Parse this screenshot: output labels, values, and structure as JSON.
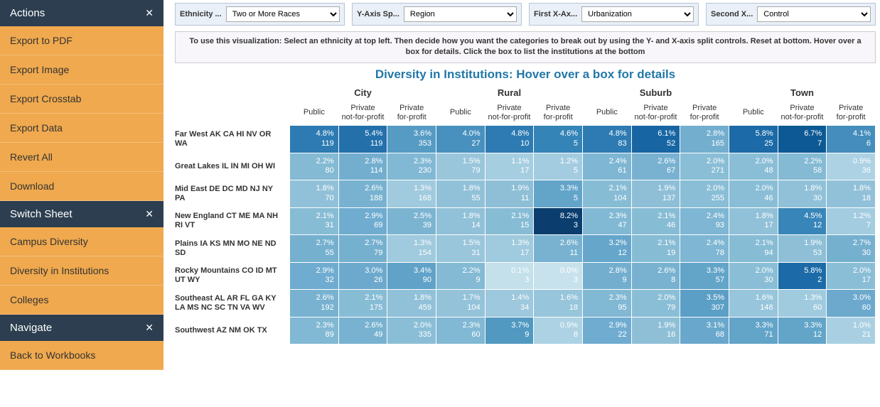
{
  "sidebar": {
    "sections": [
      {
        "title": "Actions",
        "items": [
          "Export to PDF",
          "Export Image",
          "Export Crosstab",
          "Export Data",
          "Revert All",
          "Download"
        ]
      },
      {
        "title": "Switch Sheet",
        "items": [
          "Campus Diversity",
          "Diversity in Institutions",
          "Colleges"
        ]
      },
      {
        "title": "Navigate",
        "items": [
          "Back to Workbooks"
        ]
      }
    ]
  },
  "controls": [
    {
      "label": "Ethnicity ...",
      "value": "Two or More Races"
    },
    {
      "label": "Y-Axis Sp...",
      "value": "Region"
    },
    {
      "label": "First X-Ax...",
      "value": "Urbanization"
    },
    {
      "label": "Second X...",
      "value": "Control"
    }
  ],
  "instruction": "To use this visualization: Select an ethnicity at top left.  Then decide how you want the categories to break out by using the Y- and X-axis split controls.  Reset at bottom.  Hover over a box for details.  Click the box to list the institutions at the bottom",
  "title": "Diversity in Institutions: Hover over a box for details",
  "groups": [
    "City",
    "Rural",
    "Suburb",
    "Town"
  ],
  "subheaders": [
    "Public",
    "Private\nnot-for-profit",
    "Private\nfor-profit"
  ],
  "rows": [
    {
      "label": "Far West AK CA HI NV OR WA",
      "cells": [
        {
          "p": "4.8%",
          "n": "119",
          "c": "#2d7bb2"
        },
        {
          "p": "5.4%",
          "n": "119",
          "c": "#2370ab"
        },
        {
          "p": "3.6%",
          "n": "353",
          "c": "#569bc4"
        },
        {
          "p": "4.0%",
          "n": "27",
          "c": "#4891be"
        },
        {
          "p": "4.8%",
          "n": "10",
          "c": "#2d7bb2"
        },
        {
          "p": "4.6%",
          "n": "5",
          "c": "#3484b8"
        },
        {
          "p": "4.8%",
          "n": "83",
          "c": "#2d7bb2"
        },
        {
          "p": "6.1%",
          "n": "52",
          "c": "#1765a3"
        },
        {
          "p": "2.8%",
          "n": "165",
          "c": "#73aecf"
        },
        {
          "p": "5.8%",
          "n": "25",
          "c": "#1c6aa7"
        },
        {
          "p": "6.7%",
          "n": "7",
          "c": "#0d5995"
        },
        {
          "p": "4.1%",
          "n": "6",
          "c": "#448dbc"
        }
      ]
    },
    {
      "label": "Great Lakes IL IN MI OH WI",
      "cells": [
        {
          "p": "2.2%",
          "n": "80",
          "c": "#84bad4"
        },
        {
          "p": "2.8%",
          "n": "114",
          "c": "#73aecf"
        },
        {
          "p": "2.3%",
          "n": "230",
          "c": "#81b8d4"
        },
        {
          "p": "1.5%",
          "n": "79",
          "c": "#9ac6dc"
        },
        {
          "p": "1.1%",
          "n": "17",
          "c": "#a6cee1"
        },
        {
          "p": "1.2%",
          "n": "5",
          "c": "#a3cce0"
        },
        {
          "p": "2.4%",
          "n": "61",
          "c": "#7eb6d3"
        },
        {
          "p": "2.6%",
          "n": "67",
          "c": "#78b2d0"
        },
        {
          "p": "2.0%",
          "n": "271",
          "c": "#8abed6"
        },
        {
          "p": "2.0%",
          "n": "48",
          "c": "#8abed6"
        },
        {
          "p": "2.2%",
          "n": "58",
          "c": "#84bad4"
        },
        {
          "p": "0.9%",
          "n": "36",
          "c": "#acd2e3"
        }
      ]
    },
    {
      "label": "Mid East DE DC MD NJ NY PA",
      "cells": [
        {
          "p": "1.8%",
          "n": "70",
          "c": "#91c1d8"
        },
        {
          "p": "2.6%",
          "n": "188",
          "c": "#78b2d0"
        },
        {
          "p": "1.3%",
          "n": "168",
          "c": "#a0cade"
        },
        {
          "p": "1.8%",
          "n": "55",
          "c": "#91c1d8"
        },
        {
          "p": "1.9%",
          "n": "11",
          "c": "#8ebfd7"
        },
        {
          "p": "3.3%",
          "n": "5",
          "c": "#63a4c9"
        },
        {
          "p": "2.1%",
          "n": "104",
          "c": "#87bcd5"
        },
        {
          "p": "1.9%",
          "n": "137",
          "c": "#8ebfd7"
        },
        {
          "p": "2.0%",
          "n": "255",
          "c": "#8abed6"
        },
        {
          "p": "2.0%",
          "n": "46",
          "c": "#8abed6"
        },
        {
          "p": "1.8%",
          "n": "30",
          "c": "#91c1d8"
        },
        {
          "p": "1.8%",
          "n": "18",
          "c": "#91c1d8"
        }
      ]
    },
    {
      "label": "New England CT ME MA NH RI VT",
      "cells": [
        {
          "p": "2.1%",
          "n": "31",
          "c": "#87bcd5"
        },
        {
          "p": "2.9%",
          "n": "69",
          "c": "#6facd0"
        },
        {
          "p": "2.5%",
          "n": "39",
          "c": "#7bb4d1"
        },
        {
          "p": "1.8%",
          "n": "14",
          "c": "#91c1d8"
        },
        {
          "p": "2.1%",
          "n": "15",
          "c": "#87bcd5"
        },
        {
          "p": "8.2%",
          "n": "3",
          "c": "#0b3e6f"
        },
        {
          "p": "2.3%",
          "n": "47",
          "c": "#81b8d4"
        },
        {
          "p": "2.1%",
          "n": "46",
          "c": "#87bcd5"
        },
        {
          "p": "2.4%",
          "n": "93",
          "c": "#7eb6d3"
        },
        {
          "p": "1.8%",
          "n": "17",
          "c": "#91c1d8"
        },
        {
          "p": "4.5%",
          "n": "12",
          "c": "#3886b9"
        },
        {
          "p": "1.2%",
          "n": "7",
          "c": "#a3cce0"
        }
      ]
    },
    {
      "label": "Plains IA KS MN MO NE ND SD",
      "cells": [
        {
          "p": "2.7%",
          "n": "55",
          "c": "#76b0cf"
        },
        {
          "p": "2.7%",
          "n": "79",
          "c": "#76b0cf"
        },
        {
          "p": "1.3%",
          "n": "154",
          "c": "#a0cade"
        },
        {
          "p": "1.5%",
          "n": "31",
          "c": "#9ac6dc"
        },
        {
          "p": "1.3%",
          "n": "17",
          "c": "#a0cade"
        },
        {
          "p": "2.6%",
          "n": "11",
          "c": "#78b2d0"
        },
        {
          "p": "3.2%",
          "n": "12",
          "c": "#66a6cb"
        },
        {
          "p": "2.1%",
          "n": "19",
          "c": "#87bcd5"
        },
        {
          "p": "2.4%",
          "n": "78",
          "c": "#7eb6d3"
        },
        {
          "p": "2.1%",
          "n": "94",
          "c": "#87bcd5"
        },
        {
          "p": "1.9%",
          "n": "53",
          "c": "#8ebfd7"
        },
        {
          "p": "2.7%",
          "n": "30",
          "c": "#76b0cf"
        }
      ]
    },
    {
      "label": "Rocky Mountains CO ID MT UT WY",
      "cells": [
        {
          "p": "2.9%",
          "n": "32",
          "c": "#6facd0"
        },
        {
          "p": "3.0%",
          "n": "26",
          "c": "#6ca9cd"
        },
        {
          "p": "3.4%",
          "n": "90",
          "c": "#60a2c8"
        },
        {
          "p": "2.2%",
          "n": "9",
          "c": "#84bad4"
        },
        {
          "p": "0.1%",
          "n": "3",
          "c": "#c4e0eb"
        },
        {
          "p": "0.0%",
          "n": "3",
          "c": "#c8e2ed"
        },
        {
          "p": "2.8%",
          "n": "9",
          "c": "#73aecf"
        },
        {
          "p": "2.6%",
          "n": "8",
          "c": "#78b2d0"
        },
        {
          "p": "3.3%",
          "n": "57",
          "c": "#63a4c9"
        },
        {
          "p": "2.0%",
          "n": "30",
          "c": "#8abed6"
        },
        {
          "p": "5.8%",
          "n": "2",
          "c": "#1c6aa7"
        },
        {
          "p": "2.0%",
          "n": "17",
          "c": "#8abed6"
        }
      ]
    },
    {
      "label": "Southeast AL AR FL GA KY LA MS NC SC TN VA WV",
      "cells": [
        {
          "p": "2.6%",
          "n": "192",
          "c": "#78b2d0"
        },
        {
          "p": "2.1%",
          "n": "175",
          "c": "#87bcd5"
        },
        {
          "p": "1.8%",
          "n": "459",
          "c": "#91c1d8"
        },
        {
          "p": "1.7%",
          "n": "104",
          "c": "#94c3d9"
        },
        {
          "p": "1.4%",
          "n": "34",
          "c": "#9dc8dd"
        },
        {
          "p": "1.6%",
          "n": "18",
          "c": "#97c5db"
        },
        {
          "p": "2.3%",
          "n": "95",
          "c": "#81b8d4"
        },
        {
          "p": "2.0%",
          "n": "79",
          "c": "#8abed6"
        },
        {
          "p": "3.5%",
          "n": "307",
          "c": "#5c9fc6"
        },
        {
          "p": "1.6%",
          "n": "148",
          "c": "#97c5db"
        },
        {
          "p": "1.3%",
          "n": "60",
          "c": "#a0cade"
        },
        {
          "p": "3.0%",
          "n": "60",
          "c": "#6ca9cd"
        }
      ]
    },
    {
      "label": "Southwest AZ NM OK TX",
      "cells": [
        {
          "p": "2.3%",
          "n": "89",
          "c": "#81b8d4"
        },
        {
          "p": "2.6%",
          "n": "49",
          "c": "#78b2d0"
        },
        {
          "p": "2.0%",
          "n": "335",
          "c": "#8abed6"
        },
        {
          "p": "2.3%",
          "n": "60",
          "c": "#81b8d4"
        },
        {
          "p": "3.7%",
          "n": "9",
          "c": "#5299c2"
        },
        {
          "p": "0.9%",
          "n": "8",
          "c": "#acd2e3"
        },
        {
          "p": "2.9%",
          "n": "22",
          "c": "#6facd0"
        },
        {
          "p": "1.9%",
          "n": "16",
          "c": "#8ebfd7"
        },
        {
          "p": "3.1%",
          "n": "68",
          "c": "#69a8cc"
        },
        {
          "p": "3.3%",
          "n": "71",
          "c": "#63a4c9"
        },
        {
          "p": "3.3%",
          "n": "12",
          "c": "#63a4c9"
        },
        {
          "p": "1.0%",
          "n": "21",
          "c": "#a9d0e2"
        }
      ]
    }
  ]
}
